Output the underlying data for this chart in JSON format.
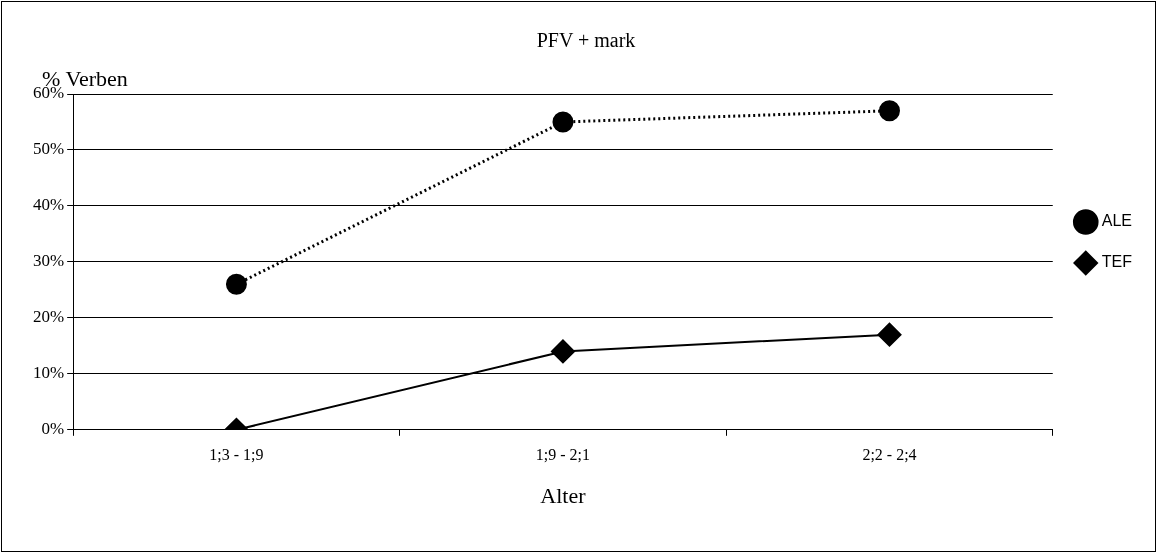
{
  "chart_data": {
    "type": "line",
    "title": "PFV + mark",
    "ylabel": "% Verben",
    "xlabel": "Alter",
    "categories": [
      "1;3 - 1;9",
      "1;9 - 2;1",
      "2;2 - 2;4"
    ],
    "series": [
      {
        "name": "ALE",
        "color": "#000000",
        "values": [
          26,
          55,
          57
        ],
        "marker": "circle",
        "line_style": "dotted"
      },
      {
        "name": "TEF",
        "color": "#000000",
        "values": [
          0,
          14,
          17
        ],
        "marker": "diamond",
        "line_style": "solid"
      }
    ],
    "ylim": [
      0,
      60
    ],
    "yticks": [
      {
        "value": 0,
        "label": "0%"
      },
      {
        "value": 10,
        "label": "10%"
      },
      {
        "value": 20,
        "label": "20%"
      },
      {
        "value": 30,
        "label": "30%"
      },
      {
        "value": 40,
        "label": "40%"
      },
      {
        "value": 50,
        "label": "50%"
      },
      {
        "value": 60,
        "label": "60%"
      }
    ],
    "grid": "y",
    "legend": "right"
  }
}
